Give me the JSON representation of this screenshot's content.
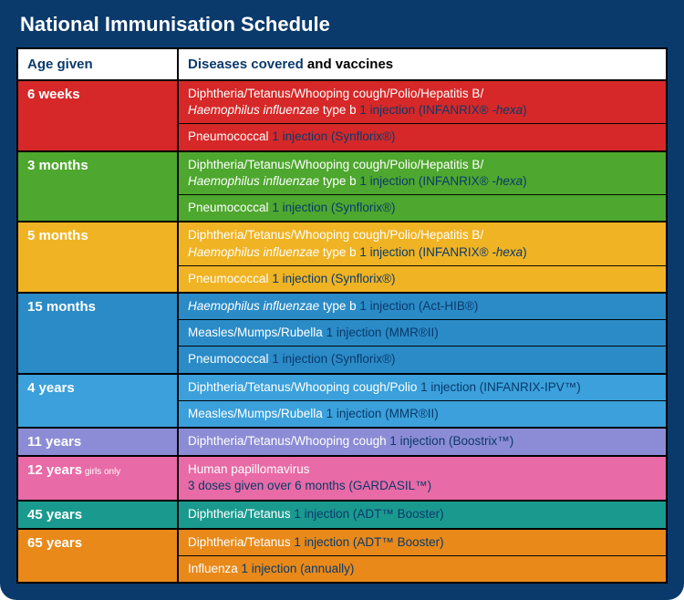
{
  "title": "National Immunisation Schedule",
  "headers": {
    "age": "Age given",
    "diseases_label": "Diseases covered",
    "vaccines_label": " and vaccines"
  },
  "colors": {
    "outer_bg": "#0a3a6b",
    "header_text": "#0a3a6b",
    "vaccine_text": "#0a3a6b",
    "border": "#000000"
  },
  "rows": [
    {
      "age": "6 weeks",
      "bg": "#d62828",
      "lines": [
        {
          "parts": [
            {
              "t": "Diphtheria/Tetanus/Whooping cough/Polio/Hepatitis B/"
            },
            {
              "br": true
            },
            {
              "t": "Haemophilus influenzae",
              "i": true
            },
            {
              "t": " type b "
            },
            {
              "t": "1 injection (INFANRIX® ",
              "v": true
            },
            {
              "t": "-hexa",
              "v": true,
              "i": true
            },
            {
              "t": ")",
              "v": true
            }
          ]
        },
        {
          "sep": true,
          "parts": [
            {
              "t": "Pneumococcal "
            },
            {
              "t": "1 injection (Synflorix®)",
              "v": true
            }
          ]
        }
      ]
    },
    {
      "age": "3 months",
      "bg": "#4ea72e",
      "lines": [
        {
          "parts": [
            {
              "t": "Diphtheria/Tetanus/Whooping cough/Polio/Hepatitis B/"
            },
            {
              "br": true
            },
            {
              "t": "Haemophilus influenzae",
              "i": true
            },
            {
              "t": " type b "
            },
            {
              "t": "1 injection (INFANRIX® ",
              "v": true
            },
            {
              "t": "-hexa",
              "v": true,
              "i": true
            },
            {
              "t": ")",
              "v": true
            }
          ]
        },
        {
          "sep": true,
          "parts": [
            {
              "t": "Pneumococcal "
            },
            {
              "t": "1 injection (Synflorix®)",
              "v": true
            }
          ]
        }
      ]
    },
    {
      "age": "5 months",
      "bg": "#f0b323",
      "lines": [
        {
          "parts": [
            {
              "t": "Diphtheria/Tetanus/Whooping cough/Polio/Hepatitis B/"
            },
            {
              "br": true
            },
            {
              "t": "Haemophilus influenzae",
              "i": true
            },
            {
              "t": " type b "
            },
            {
              "t": "1 injection (INFANRIX® ",
              "v": true
            },
            {
              "t": "-hexa",
              "v": true,
              "i": true
            },
            {
              "t": ")",
              "v": true
            }
          ]
        },
        {
          "sep": true,
          "parts": [
            {
              "t": "Pneumococcal "
            },
            {
              "t": "1 injection (Synflorix®)",
              "v": true
            }
          ]
        }
      ]
    },
    {
      "age": "15 months",
      "bg": "#2a8bc7",
      "lines": [
        {
          "parts": [
            {
              "t": "Haemophilus influenzae",
              "i": true
            },
            {
              "t": " type b "
            },
            {
              "t": "1 injection (Act-HIB®)",
              "v": true
            }
          ]
        },
        {
          "sep": true,
          "parts": [
            {
              "t": "Measles/Mumps/Rubella "
            },
            {
              "t": "1 injection (MMR®II)",
              "v": true
            }
          ]
        },
        {
          "sep": true,
          "parts": [
            {
              "t": "Pneumococcal "
            },
            {
              "t": "1 injection (Synflorix®)",
              "v": true
            }
          ]
        }
      ]
    },
    {
      "age": "4 years",
      "bg": "#3ba0db",
      "lines": [
        {
          "parts": [
            {
              "t": "Diphtheria/Tetanus/Whooping cough/Polio "
            },
            {
              "t": "1 injection (INFANRIX-IPV™)",
              "v": true
            }
          ]
        },
        {
          "sep": true,
          "parts": [
            {
              "t": "Measles/Mumps/Rubella "
            },
            {
              "t": "1 injection (MMR®II)",
              "v": true
            }
          ]
        }
      ]
    },
    {
      "age": "11 years",
      "bg": "#8c8cd6",
      "lines": [
        {
          "parts": [
            {
              "t": "Diphtheria/Tetanus/Whooping cough "
            },
            {
              "t": "1 injection (Boostrix™)",
              "v": true
            }
          ]
        }
      ]
    },
    {
      "age": "12 years",
      "age_sub": " girls only",
      "bg": "#e86aa6",
      "lines": [
        {
          "parts": [
            {
              "t": "Human papillomavirus"
            },
            {
              "br": true
            },
            {
              "t": "3 doses given over 6 months (GARDASIL™)",
              "v": true
            }
          ]
        }
      ]
    },
    {
      "age": "45 years",
      "bg": "#1a9a8f",
      "lines": [
        {
          "parts": [
            {
              "t": "Diphtheria/Tetanus "
            },
            {
              "t": "1 injection (ADT™ Booster)",
              "v": true
            }
          ]
        }
      ]
    },
    {
      "age": "65 years",
      "bg": "#e8891a",
      "lines": [
        {
          "parts": [
            {
              "t": "Diphtheria/Tetanus "
            },
            {
              "t": "1 injection (ADT™ Booster)",
              "v": true
            }
          ]
        },
        {
          "sep": true,
          "parts": [
            {
              "t": "Influenza "
            },
            {
              "t": "1 injection (annually)",
              "v": true
            }
          ]
        }
      ]
    }
  ]
}
